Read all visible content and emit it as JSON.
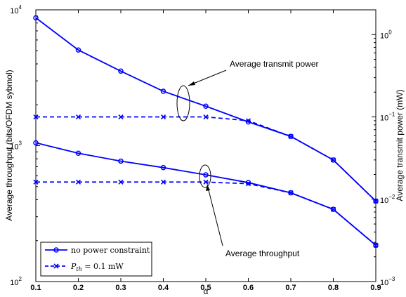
{
  "chart_data": {
    "type": "line",
    "x": [
      0.1,
      0.2,
      0.3,
      0.4,
      0.5,
      0.6,
      0.7,
      0.8,
      0.9
    ],
    "xlabel": "α",
    "xlim": [
      0.1,
      0.9
    ],
    "x_ticks": [
      "0.1",
      "0.2",
      "0.3",
      "0.4",
      "0.5",
      "0.6",
      "0.7",
      "0.8",
      "0.9"
    ],
    "ylabel": "Average throughput (bits/OFDM sybmol)",
    "ylim": [
      100,
      10000
    ],
    "yscale": "log",
    "y_ticks": [
      {
        "value": 100,
        "base": "10",
        "exp": "2"
      },
      {
        "value": 1000,
        "base": "10",
        "exp": "3"
      },
      {
        "value": 10000,
        "base": "10",
        "exp": "4"
      }
    ],
    "y2label": "Average transmit power (mW)",
    "y2lim": [
      0.001,
      2.0
    ],
    "y2scale": "log",
    "y2_ticks": [
      {
        "value": 0.001,
        "base": "10",
        "exp": "−3"
      },
      {
        "value": 0.01,
        "base": "10",
        "exp": "−2"
      },
      {
        "value": 0.1,
        "base": "10",
        "exp": "−1"
      },
      {
        "value": 1,
        "base": "10",
        "exp": "0"
      }
    ],
    "series": [
      {
        "name": "no power constraint",
        "group": "throughput",
        "axis": "left",
        "marker": "circle",
        "style": "solid",
        "values": [
          1050,
          880,
          770,
          690,
          610,
          535,
          450,
          340,
          185
        ]
      },
      {
        "name": "no power constraint",
        "group": "transmit power",
        "axis": "right",
        "marker": "circle",
        "style": "solid",
        "values": [
          1.6,
          0.65,
          0.36,
          0.205,
          0.135,
          0.087,
          0.058,
          0.03,
          0.0095
        ]
      },
      {
        "name": "P_th = 0.1 mW",
        "group": "throughput",
        "axis": "left",
        "marker": "x",
        "style": "dashed",
        "values": [
          540,
          540,
          540,
          540,
          540,
          525,
          450,
          340,
          185
        ]
      },
      {
        "name": "P_th = 0.1 mW",
        "group": "transmit power",
        "axis": "right",
        "marker": "x",
        "style": "dashed",
        "values": [
          0.1,
          0.1,
          0.1,
          0.1,
          0.1,
          0.09,
          0.058,
          0.03,
          0.0095
        ]
      }
    ],
    "legend": {
      "placement": "bottom-left",
      "entries": [
        {
          "marker": "circle",
          "style": "solid",
          "text": "no power constraint"
        },
        {
          "marker": "x",
          "style": "dashed",
          "prefix": "P",
          "sub": "th",
          "rest": " = 0.1 mW"
        }
      ]
    },
    "annotations": [
      {
        "text": "Average transmit power"
      },
      {
        "text": "Average throughput"
      }
    ],
    "grid": false,
    "colors": {
      "line": "#0000ff",
      "axis": "#000000",
      "background": "#ffffff"
    }
  }
}
